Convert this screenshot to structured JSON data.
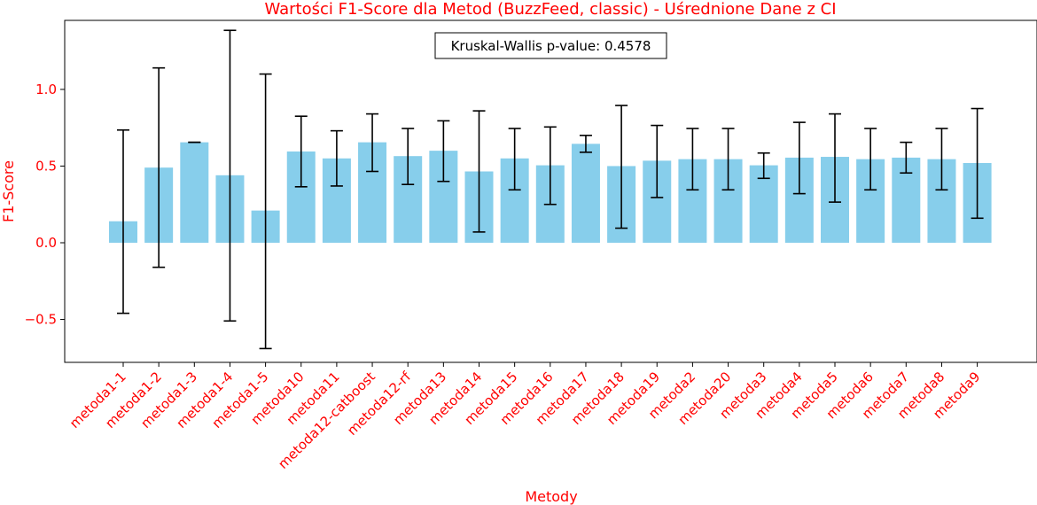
{
  "chart_data": {
    "type": "bar",
    "title": "Wartości F1-Score dla Metod (BuzzFeed, classic) - Uśrednione Dane z CI",
    "xlabel": "Metody",
    "ylabel": "F1-Score",
    "ylim": [
      -0.78,
      1.45
    ],
    "yticks": [
      -0.5,
      0.0,
      0.5,
      1.0
    ],
    "ytick_labels": [
      "−0.5",
      "0.0",
      "0.5",
      "1.0"
    ],
    "annotation": "Kruskal-Wallis p-value: 0.4578",
    "bar_color": "#87ceeb",
    "error_color": "#000000",
    "text_color": "#ff0000",
    "grid": false,
    "categories": [
      "metoda1-1",
      "metoda1-2",
      "metoda1-3",
      "metoda1-4",
      "metoda1-5",
      "metoda10",
      "metoda11",
      "metoda12-catboost",
      "metoda12-rf",
      "metoda13",
      "metoda14",
      "metoda15",
      "metoda16",
      "metoda17",
      "metoda18",
      "metoda19",
      "metoda2",
      "metoda20",
      "metoda3",
      "metoda4",
      "metoda5",
      "metoda6",
      "metoda7",
      "metoda8",
      "metoda9"
    ],
    "values": [
      0.14,
      0.49,
      0.655,
      0.44,
      0.21,
      0.595,
      0.55,
      0.655,
      0.565,
      0.6,
      0.465,
      0.55,
      0.505,
      0.645,
      0.5,
      0.535,
      0.545,
      0.545,
      0.505,
      0.555,
      0.56,
      0.545,
      0.555,
      0.545,
      0.52
    ],
    "ci_low": [
      -0.46,
      -0.16,
      0.655,
      -0.51,
      -0.69,
      0.365,
      0.37,
      0.465,
      0.38,
      0.4,
      0.07,
      0.345,
      0.25,
      0.59,
      0.095,
      0.295,
      0.345,
      0.345,
      0.42,
      0.32,
      0.265,
      0.345,
      0.455,
      0.345,
      0.16
    ],
    "ci_high": [
      0.735,
      1.14,
      0.655,
      1.385,
      1.1,
      0.825,
      0.73,
      0.84,
      0.745,
      0.795,
      0.86,
      0.745,
      0.755,
      0.7,
      0.895,
      0.765,
      0.745,
      0.745,
      0.585,
      0.785,
      0.84,
      0.745,
      0.655,
      0.745,
      0.875
    ]
  }
}
